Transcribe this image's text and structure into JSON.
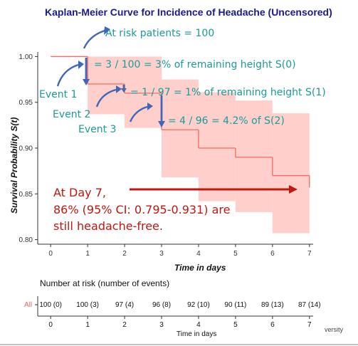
{
  "chart_data": {
    "type": "line",
    "subtype": "kaplan-meier step",
    "title": "Kaplan-Meier Curve for Incidence of Headache (Uncensored)",
    "xlabel": "Time in days",
    "ylabel": "Survival Probability S(t)",
    "xlim": [
      -0.35,
      7.1
    ],
    "ylim": [
      0.795,
      1.005
    ],
    "x_ticks": [
      0,
      1,
      2,
      3,
      4,
      5,
      6,
      7
    ],
    "y_ticks": [
      0.8,
      0.85,
      0.9,
      0.95,
      1.0
    ],
    "y_tick_labels": [
      "0.80",
      "0.85",
      "0.90",
      "0.95",
      "1.00"
    ],
    "grid": false,
    "series": [
      {
        "x": [
          0,
          1,
          2,
          3,
          4,
          5,
          6,
          7
        ],
        "survival": [
          1.0,
          0.97,
          0.96,
          0.92,
          0.9,
          0.89,
          0.87,
          0.86
        ],
        "ci_lower": [
          1.0,
          0.937,
          0.922,
          0.868,
          0.842,
          0.83,
          0.807,
          0.795
        ],
        "ci_upper": [
          1.0,
          1.0,
          1.0,
          0.975,
          0.961,
          0.952,
          0.938,
          0.931
        ],
        "color": "#f26b60",
        "band_color": "#ffd0cb"
      }
    ],
    "annotations": {
      "at_risk": "At risk patients = 100",
      "step1": "= 3 / 100 = 3% of remaining height S(0)",
      "step2": "= 1 / 97 = 1% of remaining height S(1)",
      "step3": "= 4 / 96 = 4.2% of S(2)",
      "event1": "Event 1",
      "event2": "Event 2",
      "event3": "Event 3",
      "day7_line1": "At Day 7,",
      "day7_line2": "86% (95% CI: 0.795-0.931) are",
      "day7_line3": "still headache-free."
    },
    "risk_table": {
      "title": "Number at risk (number of events)",
      "strata": "All",
      "times": [
        0,
        1,
        2,
        3,
        4,
        5,
        6,
        7
      ],
      "values": [
        "100 (0)",
        "100 (3)",
        "97 (4)",
        "96 (8)",
        "92 (10)",
        "90 (11)",
        "89 (13)",
        "87 (14)"
      ],
      "xlabel": "Time in days"
    },
    "fragment_text": "versity",
    "colors": {
      "title": "#1a1a8c",
      "teal_annotation": "#1a9b96",
      "red_annotation": "#c0170f",
      "arrow_blue": "#3f66b8",
      "arrow_red": "#c0170f"
    }
  }
}
